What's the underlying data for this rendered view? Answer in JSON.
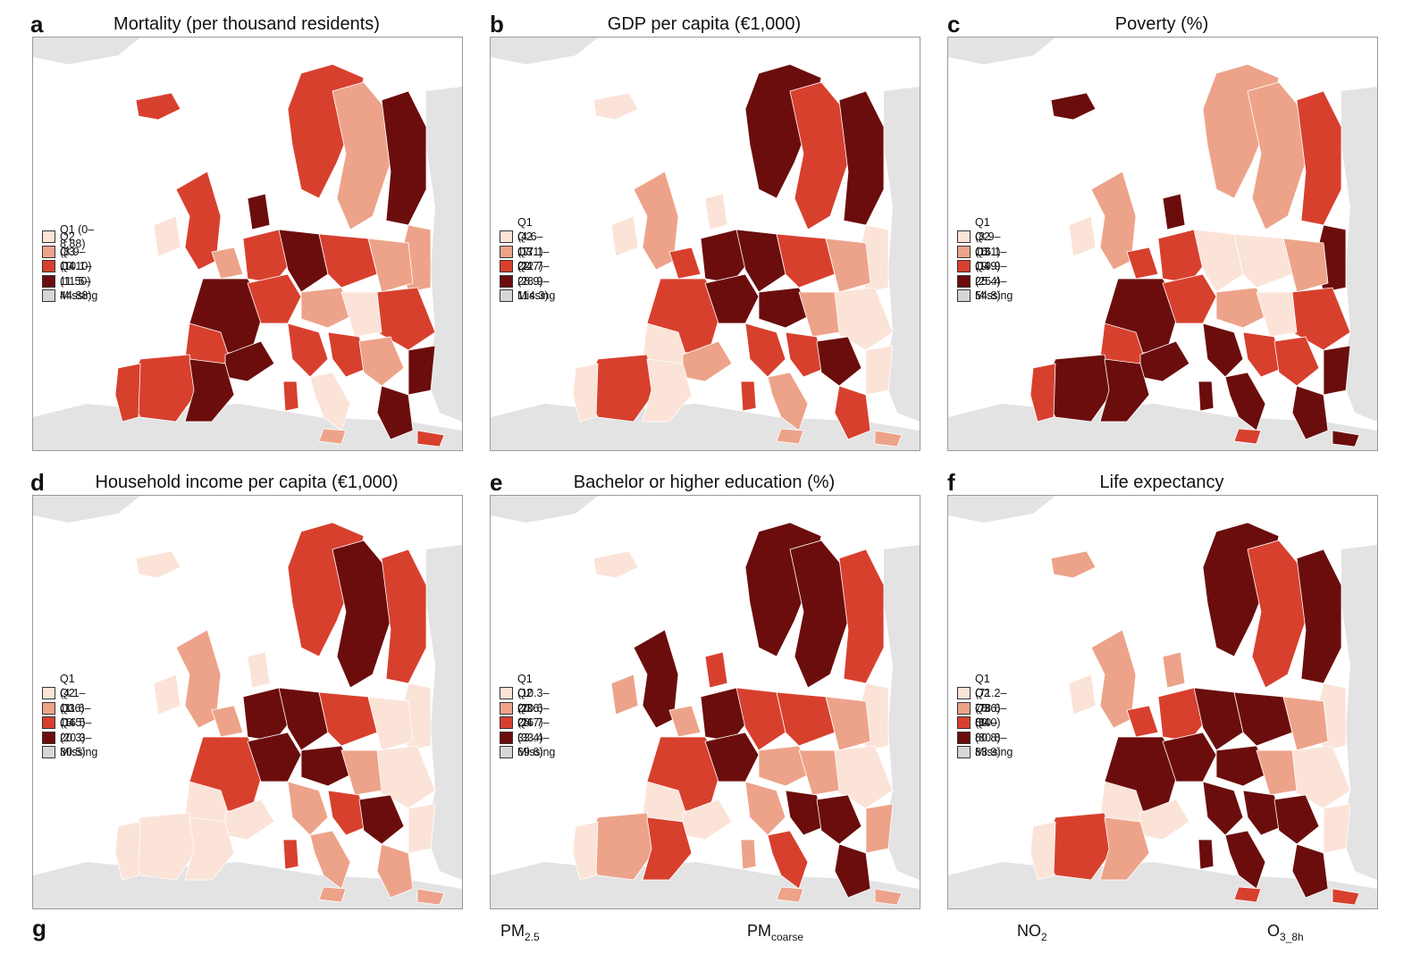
{
  "panels": [
    {
      "letter": "a",
      "title": "Mortality (per thousand residents)",
      "legend": [
        "Q1 (0– 8.88)",
        "Q2 (8.9–10.10)",
        "Q3 (10.1–11.50)",
        "Q4 (11.5–44.88)",
        "Missing"
      ],
      "pattern": [
        2,
        1,
        3,
        2,
        0,
        1,
        2,
        3,
        2,
        1,
        2,
        3,
        3,
        2,
        1,
        0,
        2,
        3,
        2,
        2,
        1,
        2,
        3,
        2,
        0,
        3,
        2,
        1,
        2,
        3,
        2,
        1
      ]
    },
    {
      "letter": "b",
      "title": "GDP per capita (€1,000)",
      "legend": [
        "Q1 (4.6– 17.1)",
        "Q2 (17.1– 22.7)",
        "Q3 (22.7– 28.9)",
        "Q4 (28.9–114.3)",
        "Missing"
      ],
      "pattern": [
        3,
        2,
        3,
        1,
        0,
        0,
        3,
        3,
        2,
        1,
        0,
        0,
        2,
        3,
        3,
        1,
        0,
        1,
        2,
        2,
        3,
        2,
        0,
        0,
        1,
        2,
        2,
        1,
        0,
        0,
        1,
        2
      ]
    },
    {
      "letter": "c",
      "title": "Poverty (%)",
      "legend": [
        "Q1 (8.9–16.1)",
        "Q2 (16.1–19.9)",
        "Q3 (19.9–25.4)",
        "Q4 (25.4–54.8)",
        "Missing"
      ],
      "pattern": [
        1,
        1,
        2,
        1,
        0,
        3,
        2,
        0,
        0,
        1,
        2,
        3,
        3,
        2,
        1,
        0,
        2,
        3,
        3,
        2,
        2,
        3,
        3,
        2,
        3,
        3,
        3,
        2,
        3,
        3,
        3,
        2
      ]
    },
    {
      "letter": "d",
      "title": "Household income per capita (€1,000)",
      "legend": [
        "Q1 (4.1–11.6)",
        "Q2 (11.6–16.5)",
        "Q3 (16.5–20.3)",
        "Q4 (20.3–30.5)",
        "Missing"
      ],
      "pattern": [
        2,
        3,
        2,
        1,
        0,
        0,
        3,
        3,
        2,
        0,
        0,
        0,
        2,
        3,
        3,
        1,
        0,
        0,
        1,
        2,
        3,
        0,
        0,
        0,
        1,
        1,
        2,
        1,
        0,
        0,
        1,
        1
      ]
    },
    {
      "letter": "e",
      "title": "Bachelor or higher education (%)",
      "legend": [
        "Q1 (10.3–20.6)",
        "Q2 (20.6–26.7)",
        "Q3 (26.7–33.4)",
        "Q4 (33.4–69.6)",
        "Missing"
      ],
      "pattern": [
        3,
        3,
        2,
        3,
        1,
        0,
        3,
        2,
        2,
        1,
        0,
        1,
        2,
        3,
        1,
        1,
        0,
        0,
        1,
        3,
        3,
        1,
        2,
        0,
        2,
        3,
        1,
        1,
        0,
        2,
        1,
        1
      ]
    },
    {
      "letter": "f",
      "title": "Life expectancy",
      "legend": [
        "Q1 (71.2–78.6)",
        "Q2 (78.6–80.0)",
        "Q3 (80–80.8)",
        "Q4 (80.8–83.9)",
        "Missing"
      ],
      "pattern": [
        3,
        2,
        3,
        1,
        0,
        0,
        2,
        3,
        3,
        1,
        0,
        0,
        3,
        3,
        3,
        1,
        0,
        0,
        3,
        3,
        3,
        2,
        1,
        0,
        3,
        3,
        3,
        2,
        1,
        1,
        2,
        2
      ]
    }
  ],
  "colors": {
    "q1": "#fbe3d8",
    "q2": "#eda38a",
    "q3": "#d8402e",
    "q4": "#6b0d0d",
    "missing": "#d6d6d6",
    "sea": "#ffffff",
    "land_outside": "#e3e3e3"
  },
  "g": {
    "letter": "g",
    "labels": [
      {
        "main": "PM",
        "sub": "2.5"
      },
      {
        "main": "PM",
        "sub": "coarse"
      },
      {
        "main": "NO",
        "sub": "2"
      },
      {
        "main": "O",
        "sub": "3_8h"
      }
    ]
  }
}
